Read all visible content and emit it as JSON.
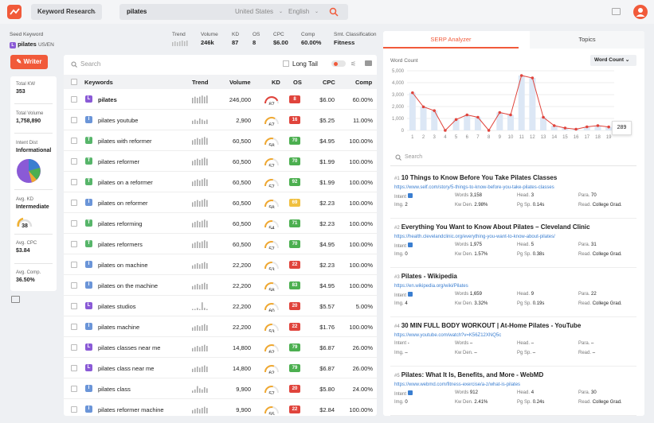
{
  "topbar": {
    "mode": "Keyword Research",
    "query": "pilates",
    "country": "United States",
    "language": "English"
  },
  "seed": {
    "label": "Seed Keyword",
    "keyword": "pilates",
    "locale": "US/EN"
  },
  "summary": [
    {
      "label": "Trend",
      "value": ""
    },
    {
      "label": "Volume",
      "value": "246k"
    },
    {
      "label": "KD",
      "value": "87"
    },
    {
      "label": "OS",
      "value": "8"
    },
    {
      "label": "CPC",
      "value": "$6.00"
    },
    {
      "label": "Comp",
      "value": "60.00%"
    },
    {
      "label": "Smt. Classification",
      "value": "Fitness"
    }
  ],
  "writer_label": "Writer",
  "side": {
    "total_kw_label": "Total KW",
    "total_kw": "353",
    "total_volume_label": "Total Volume",
    "total_volume": "1,758,890",
    "intent_label": "Intent Dist",
    "intent": "Informational",
    "avg_kd_label": "Avg. KD",
    "avg_kd": "Intermediate",
    "avg_kd_value": "38",
    "avg_cpc_label": "Avg. CPC",
    "avg_cpc": "$3.84",
    "avg_comp_label": "Avg. Comp.",
    "avg_comp": "36.50%"
  },
  "table": {
    "search_placeholder": "Search",
    "long_tail": "Long Tail",
    "headers": {
      "keywords": "Keywords",
      "trend": "Trend",
      "volume": "Volume",
      "kd": "KD",
      "os": "OS",
      "cpc": "CPC",
      "comp": "Comp"
    },
    "rows": [
      {
        "intent": "L",
        "kw": "pilates",
        "vol": "246,000",
        "kd": "87",
        "os": "8",
        "cpc": "$6.00",
        "comp": "60.00%"
      },
      {
        "intent": "I",
        "kw": "pilates youtube",
        "vol": "2,900",
        "kd": "67",
        "os": "16",
        "cpc": "$5.25",
        "comp": "11.00%"
      },
      {
        "intent": "T",
        "kw": "pilates with reformer",
        "vol": "60,500",
        "kd": "58",
        "os": "70",
        "cpc": "$4.95",
        "comp": "100.00%"
      },
      {
        "intent": "T",
        "kw": "pilates reformer",
        "vol": "60,500",
        "kd": "57",
        "os": "70",
        "cpc": "$1.99",
        "comp": "100.00%"
      },
      {
        "intent": "T",
        "kw": "pilates on a reformer",
        "vol": "60,500",
        "kd": "57",
        "os": "92",
        "cpc": "$1.99",
        "comp": "100.00%"
      },
      {
        "intent": "I",
        "kw": "pilates on reformer",
        "vol": "60,500",
        "kd": "58",
        "os": "69",
        "cpc": "$2.23",
        "comp": "100.00%"
      },
      {
        "intent": "T",
        "kw": "pilates reforming",
        "vol": "60,500",
        "kd": "54",
        "os": "71",
        "cpc": "$2.23",
        "comp": "100.00%"
      },
      {
        "intent": "T",
        "kw": "pilates reformers",
        "vol": "60,500",
        "kd": "57",
        "os": "70",
        "cpc": "$4.95",
        "comp": "100.00%"
      },
      {
        "intent": "I",
        "kw": "pilates on machine",
        "vol": "22,200",
        "kd": "53",
        "os": "22",
        "cpc": "$2.23",
        "comp": "100.00%"
      },
      {
        "intent": "I",
        "kw": "pilates on the machine",
        "vol": "22,200",
        "kd": "58",
        "os": "83",
        "cpc": "$4.95",
        "comp": "100.00%"
      },
      {
        "intent": "L",
        "kw": "pilates studios",
        "vol": "22,200",
        "kd": "60",
        "os": "20",
        "cpc": "$5.57",
        "comp": "5.00%"
      },
      {
        "intent": "I",
        "kw": "pilates machine",
        "vol": "22,200",
        "kd": "53",
        "os": "22",
        "cpc": "$1.76",
        "comp": "100.00%"
      },
      {
        "intent": "L",
        "kw": "pilates classes near me",
        "vol": "14,800",
        "kd": "62",
        "os": "79",
        "cpc": "$6.87",
        "comp": "26.00%"
      },
      {
        "intent": "L",
        "kw": "pilates class near me",
        "vol": "14,800",
        "kd": "62",
        "os": "79",
        "cpc": "$6.87",
        "comp": "26.00%"
      },
      {
        "intent": "I",
        "kw": "pilates class",
        "vol": "9,900",
        "kd": "57",
        "os": "20",
        "cpc": "$5.80",
        "comp": "24.00%"
      },
      {
        "intent": "I",
        "kw": "pilates reformer machine",
        "vol": "9,900",
        "kd": "55",
        "os": "22",
        "cpc": "$2.84",
        "comp": "100.00%"
      }
    ]
  },
  "serp": {
    "tab1": "SERP Analyzer",
    "tab2": "Topics",
    "chart_title": "Word Count",
    "dropdown": "Word Count",
    "tooltip": "289",
    "search_placeholder": "Search",
    "results": [
      {
        "n": "#1",
        "title": "10 Things to Know Before You Take Pilates Classes",
        "url": "https://www.self.com/story/5-things-to-know-before-you-take-pilates-classes",
        "intent": "",
        "words": "3,158",
        "head": "3",
        "para": "70",
        "img": "2",
        "kwden": "2.98%",
        "pgsp": "0.14s",
        "read": "College Grad."
      },
      {
        "n": "#2",
        "title": "Everything You Want to Know About Pilates – Cleveland Clinic",
        "url": "https://health.clevelandclinic.org/everything-you-want-to-know-about-pilates/",
        "intent": "",
        "words": "1,975",
        "head": "5",
        "para": "31",
        "img": "0",
        "kwden": "1.57%",
        "pgsp": "0.38s",
        "read": "College Grad."
      },
      {
        "n": "#3",
        "title": "Pilates - Wikipedia",
        "url": "https://en.wikipedia.org/wiki/Pilates",
        "intent": "",
        "words": "1,659",
        "head": "9",
        "para": "22",
        "img": "4",
        "kwden": "3.32%",
        "pgsp": "0.19s",
        "read": "College Grad."
      },
      {
        "n": "#4",
        "title": "30 MIN FULL BODY WORKOUT | At-Home Pilates - YouTube",
        "url": "https://www.youtube.com/watch?v=K56Z12XNQ5c",
        "intent": "-",
        "words": "–",
        "head": "–",
        "para": "–",
        "img": "–",
        "kwden": "–",
        "pgsp": "–",
        "read": "–"
      },
      {
        "n": "#5",
        "title": "Pilates: What It Is, Benefits, and More - WebMD",
        "url": "https://www.webmd.com/fitness-exercise/a-z/what-is-pilates",
        "intent": "",
        "words": "912",
        "head": "4",
        "para": "30",
        "img": "0",
        "kwden": "2.41%",
        "pgsp": "0.24s",
        "read": "College Grad."
      }
    ],
    "labels": {
      "intent": "Intent",
      "words": "Words",
      "head": "Head.",
      "para": "Para.",
      "img": "Img.",
      "kwden": "Kw Den.",
      "pgsp": "Pg Sp.",
      "read": "Read."
    }
  },
  "chart_data": {
    "type": "bar",
    "title": "Word Count",
    "categories": [
      "1",
      "2",
      "3",
      "4",
      "5",
      "6",
      "7",
      "8",
      "9",
      "10",
      "11",
      "12",
      "13",
      "14",
      "15",
      "16",
      "17",
      "18",
      "19"
    ],
    "values": [
      3158,
      1975,
      1659,
      0,
      912,
      1300,
      1100,
      0,
      1500,
      1300,
      4600,
      4400,
      1100,
      400,
      200,
      100,
      300,
      400,
      289
    ],
    "ylim": [
      0,
      5000
    ],
    "yticks": [
      "0",
      "1,000",
      "2,000",
      "3,000",
      "4,000",
      "5,000"
    ]
  }
}
